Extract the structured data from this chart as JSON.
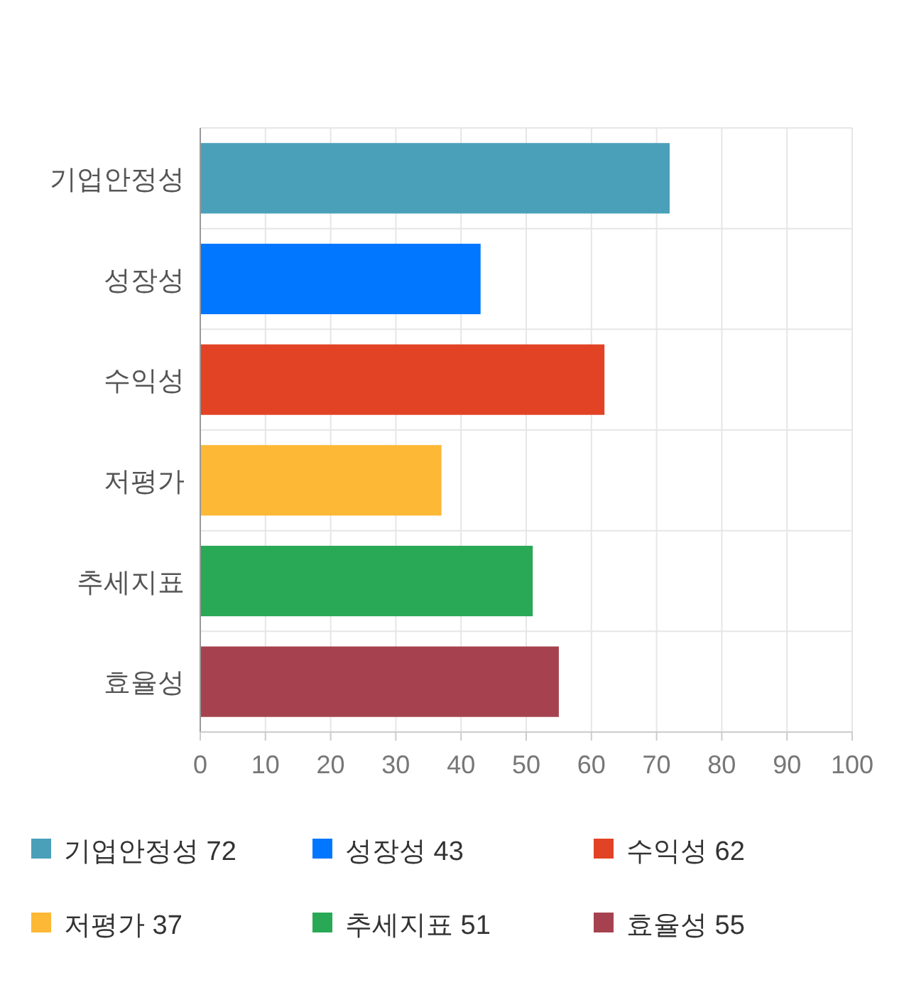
{
  "chart_data": {
    "type": "bar",
    "orientation": "horizontal",
    "stacked": true,
    "categories": [
      "기업안정성",
      "성장성",
      "수익성",
      "저평가",
      "추세지표",
      "효율성"
    ],
    "series": [
      {
        "name": "기업안정성 72",
        "color": "#4aa0b9",
        "values": [
          72,
          null,
          null,
          null,
          null,
          null
        ]
      },
      {
        "name": "성장성 43",
        "color": "#0077fe",
        "values": [
          null,
          43,
          null,
          null,
          null,
          null
        ]
      },
      {
        "name": "수익성 62",
        "color": "#e24325",
        "values": [
          null,
          null,
          62,
          null,
          null,
          null
        ]
      },
      {
        "name": "저평가 37",
        "color": "#fdb835",
        "values": [
          null,
          null,
          null,
          37,
          null,
          null
        ]
      },
      {
        "name": "추세지표 51",
        "color": "#29a856",
        "values": [
          null,
          null,
          null,
          null,
          51,
          null
        ]
      },
      {
        "name": "효율성 55",
        "color": "#a6424f",
        "values": [
          null,
          null,
          null,
          null,
          null,
          55
        ]
      }
    ],
    "xlim": [
      0,
      100
    ],
    "xticks": [
      0,
      10,
      20,
      30,
      40,
      50,
      60,
      70,
      80,
      90,
      100
    ],
    "grid": true,
    "legend": "bottom"
  }
}
